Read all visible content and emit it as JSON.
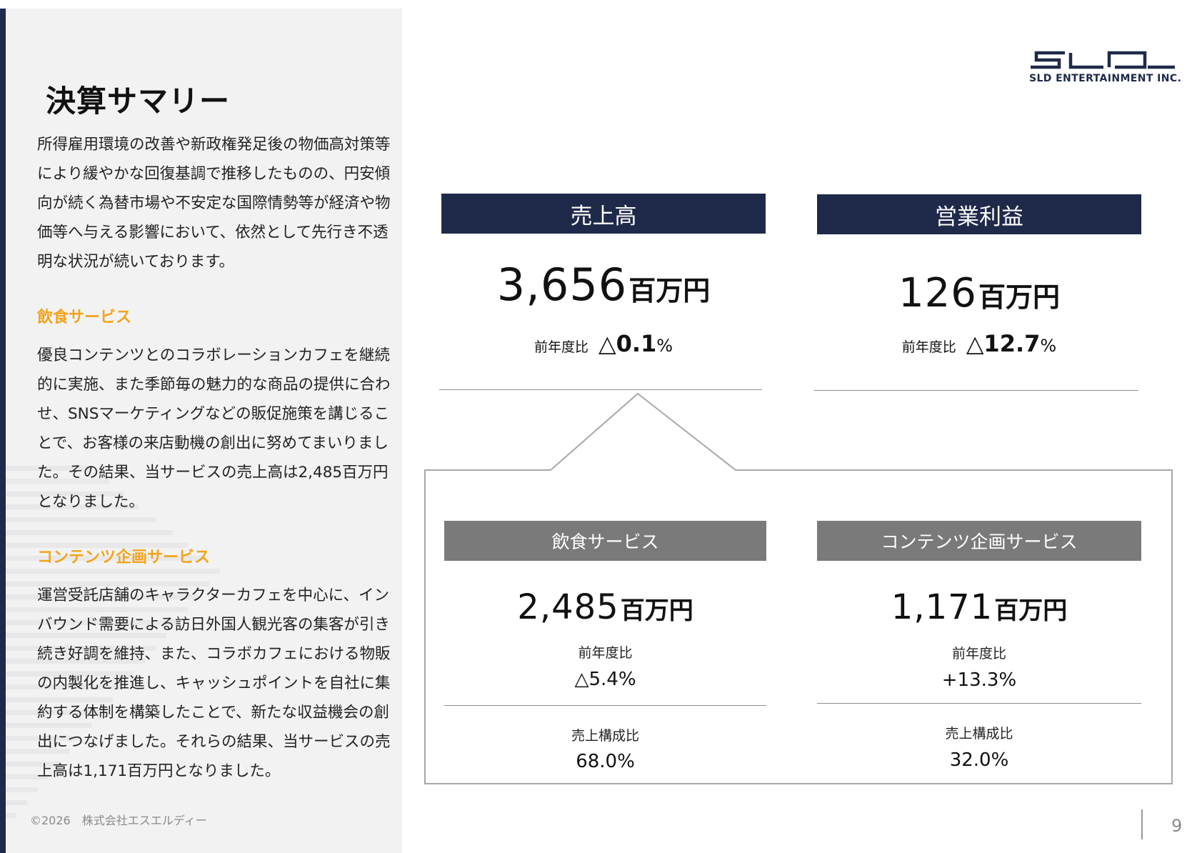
{
  "page": {
    "title": "決算サマリー",
    "intro": "所得雇用環境の改善や新政権発足後の物価高対策等により緩やかな回復基調で推移したものの、円安傾向が続く為替市場や不安定な国際情勢等が経済や物価等へ与える影響において、依然として先行き不透明な状況が続いております。",
    "sections": [
      {
        "heading": "飲食サービス",
        "body": "優良コンテンツとのコラボレーションカフェを継続的に実施、また季節毎の魅力的な商品の提供に合わせ、SNSマーケティングなどの販促施策を講じることで、お客様の来店動機の創出に努めてまいりました。その結果、当サービスの売上高は2,485百万円となりました。"
      },
      {
        "heading": "コンテンツ企画サービス",
        "body": "運営受託店舗のキャラクターカフェを中心に、インバウンド需要による訪日外国人観光客の集客が引き続き好調を維持、また、コラボカフェにおける物販の内製化を推進し、キャッシュポイントを自社に集約する体制を構築したことで、新たな収益機会の創出につなげました。それらの結果、当サービスの売上高は1,171百万円となりました。"
      }
    ],
    "copyright": "©2026　株式会社エスエルディー",
    "page_number": "9"
  },
  "logo": {
    "text": "SLD ENTERTAINMENT INC."
  },
  "kpis": {
    "unit": "百万円",
    "yoy_label": "前年度比",
    "sales": {
      "label": "売上高",
      "value": "3,656",
      "yoy": "△0.1",
      "yoy_pct": "%"
    },
    "operating_profit": {
      "label": "営業利益",
      "value": "126",
      "yoy": "△12.7",
      "yoy_pct": "%"
    }
  },
  "segments": {
    "share_label": "売上構成比",
    "food": {
      "label": "飲食サービス",
      "value": "2,485",
      "yoy": "△5.4%",
      "share": "68.0%"
    },
    "content": {
      "label": "コンテンツ企画サービス",
      "value": "1,171",
      "yoy": "+13.3%",
      "share": "32.0%"
    }
  },
  "colors": {
    "navy": "#1f2a4a",
    "accent_orange": "#f2a41c",
    "segment_gray": "#7a7a7a",
    "panel_bg": "#f2f2f2"
  }
}
